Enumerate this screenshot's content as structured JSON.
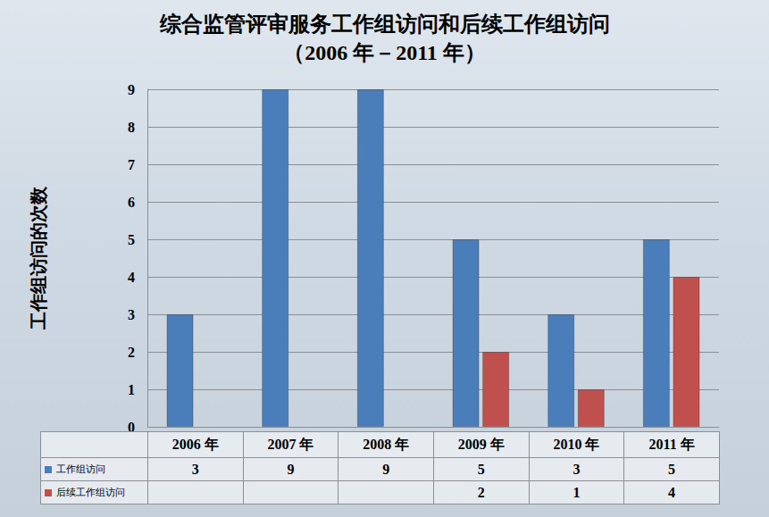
{
  "chart_data": {
    "type": "bar",
    "title": "综合监管评审服务工作组访问和后续工作组访问",
    "subtitle": "（2006 年－2011 年）",
    "y_label": "工作组访问的次数",
    "categories": [
      "2006 年",
      "2007 年",
      "2008 年",
      "2009 年",
      "2010 年",
      "2011 年"
    ],
    "series": [
      {
        "name": "工作组访问",
        "color": "#4a7ebb",
        "values": [
          3,
          9,
          9,
          5,
          3,
          5
        ]
      },
      {
        "name": "后续工作组访问",
        "color": "#c0504d",
        "values": [
          null,
          null,
          null,
          2,
          1,
          4
        ]
      }
    ],
    "ylim": [
      0,
      9
    ],
    "yticks": [
      0,
      1,
      2,
      3,
      4,
      5,
      6,
      7,
      8,
      9
    ],
    "grid": true,
    "legend": "bottom"
  }
}
